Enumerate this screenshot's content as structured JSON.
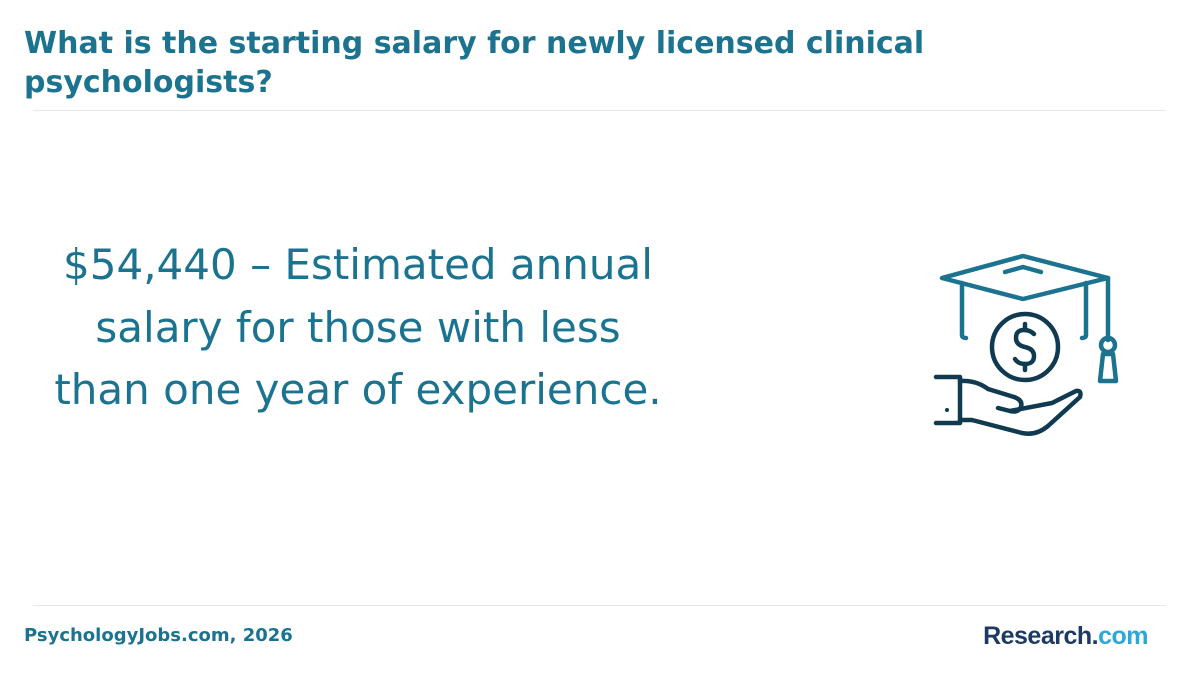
{
  "header": {
    "title": "What is the starting salary for newly licensed clinical psychologists?"
  },
  "main": {
    "statement": "$54,440 – Estimated annual salary for those with less than one year of experience.",
    "icon": "graduation-cap-coin-hand-icon"
  },
  "footer": {
    "source": "PsychologyJobs.com, 2026",
    "brand_part1": "Research.",
    "brand_part2": "com"
  },
  "colors": {
    "title": "#1c7390",
    "icon_teal": "#1c7390",
    "icon_navy": "#0f3a4f",
    "brand_navy": "#1d3a63",
    "brand_blue": "#2aa8d8"
  }
}
